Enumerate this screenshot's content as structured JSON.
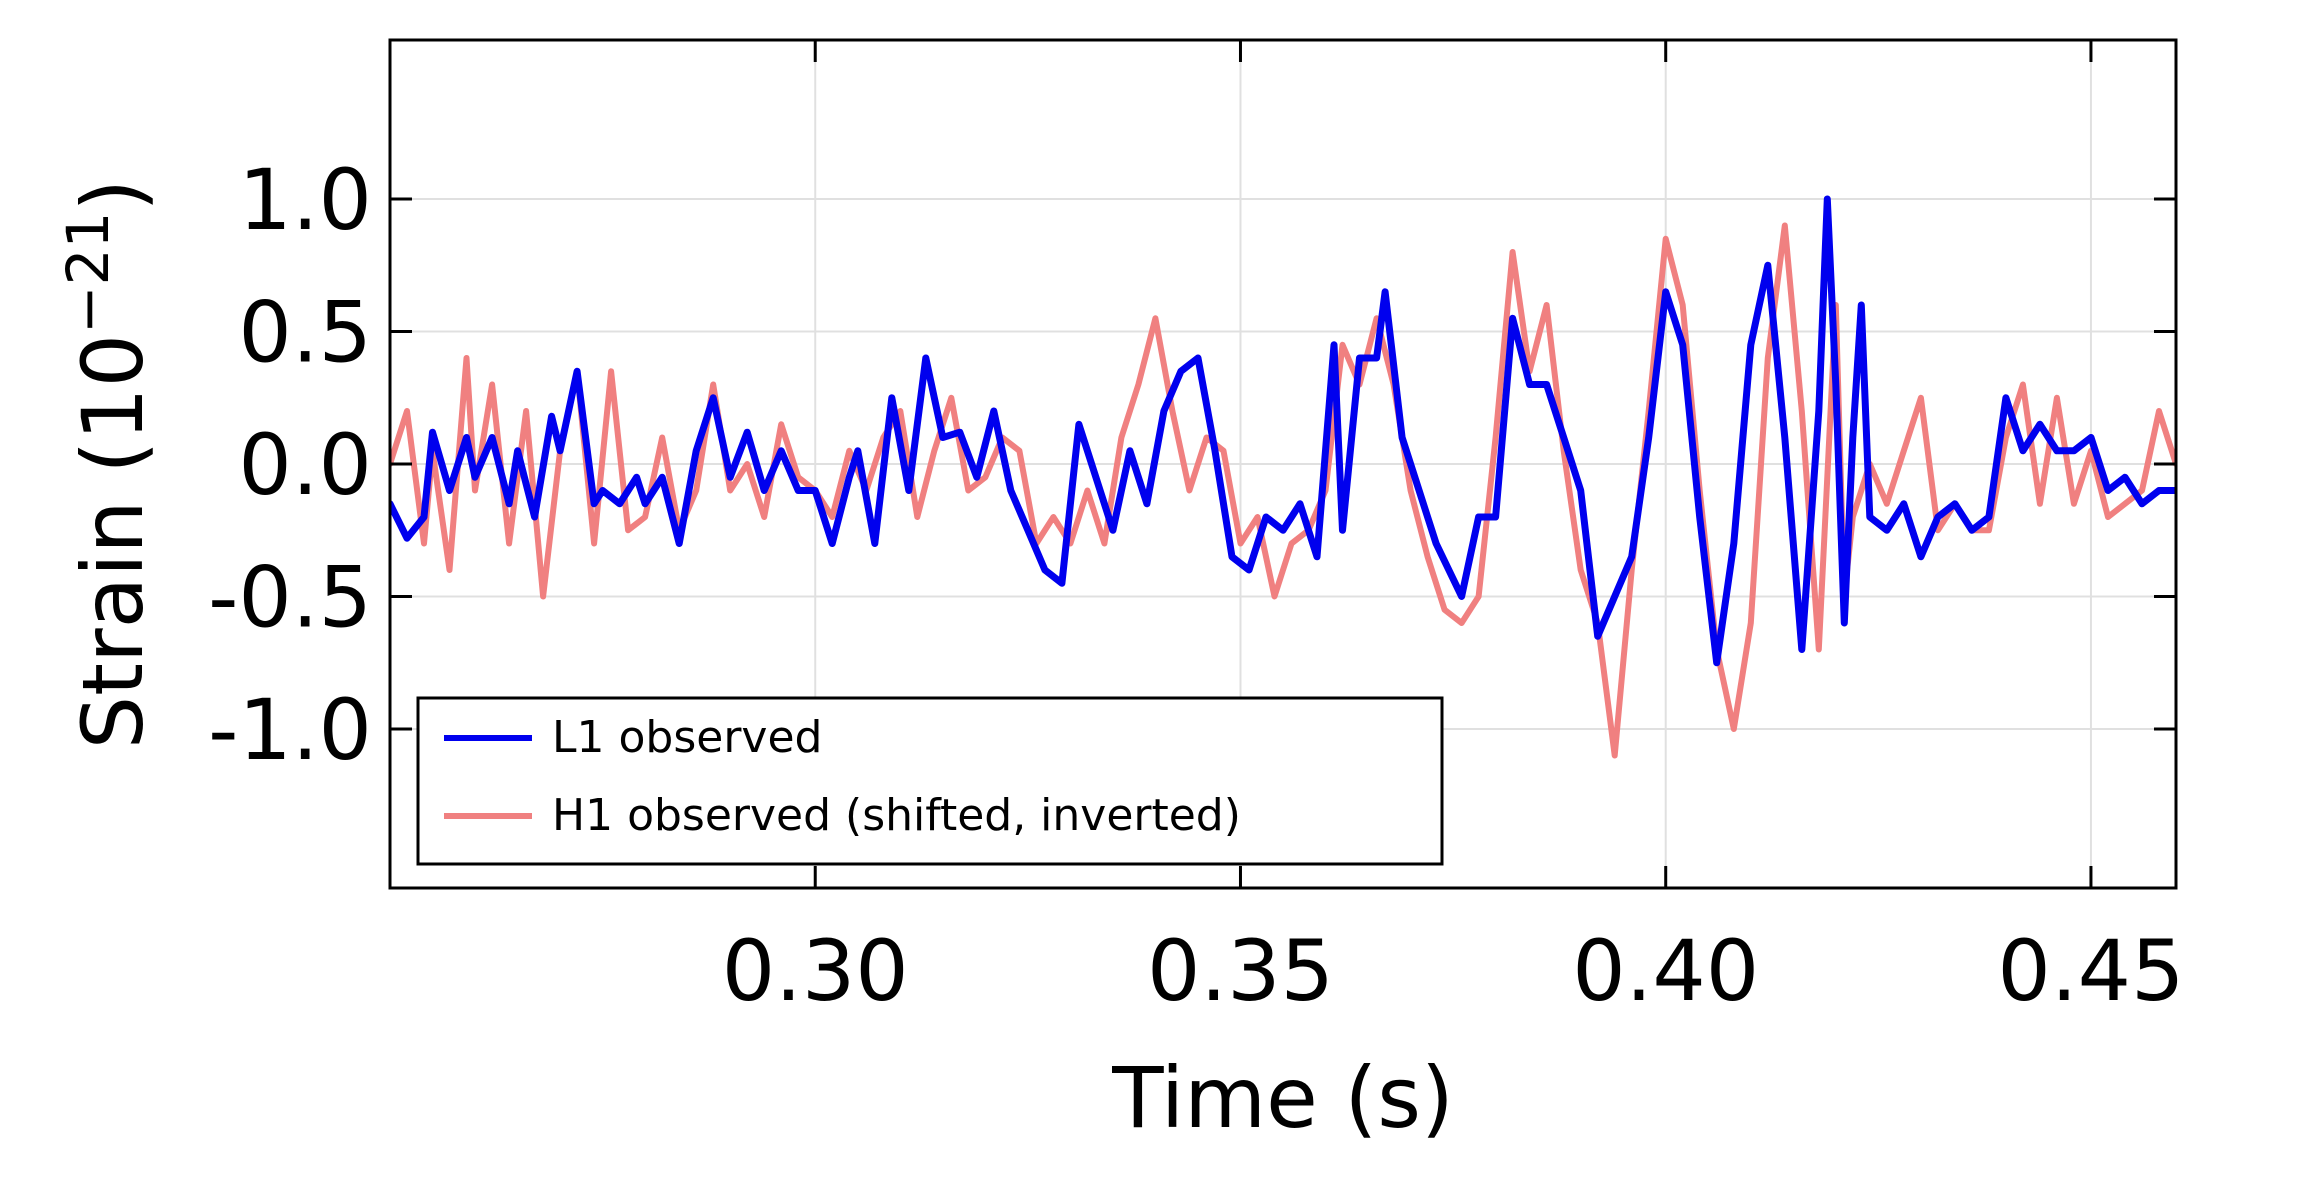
{
  "chart_data": {
    "type": "line",
    "title": "",
    "xlabel": "Time (s)",
    "ylabel": "Strain (10",
    "ylabel_exponent": "−21",
    "ylabel_close": ")",
    "xlim": [
      0.25,
      0.46
    ],
    "ylim": [
      -1.6,
      1.6
    ],
    "xticks": [
      0.3,
      0.35,
      0.4,
      0.45
    ],
    "xtick_labels": [
      "0.30",
      "0.35",
      "0.40",
      "0.45"
    ],
    "yticks": [
      1.0,
      0.5,
      0.0,
      -0.5,
      -1.0
    ],
    "ytick_labels": [
      "1.0",
      "0.5",
      "0.0",
      "-0.5",
      "-1.0"
    ],
    "grid": true,
    "legend_position": "bottom-left",
    "series": [
      {
        "name": "L1 observed",
        "color": "#0000ee",
        "x": [
          0.25,
          0.252,
          0.254,
          0.255,
          0.257,
          0.259,
          0.26,
          0.262,
          0.264,
          0.265,
          0.267,
          0.269,
          0.27,
          0.272,
          0.274,
          0.275,
          0.277,
          0.279,
          0.28,
          0.282,
          0.284,
          0.286,
          0.288,
          0.29,
          0.292,
          0.294,
          0.296,
          0.298,
          0.3,
          0.302,
          0.304,
          0.305,
          0.307,
          0.309,
          0.311,
          0.313,
          0.315,
          0.317,
          0.319,
          0.321,
          0.323,
          0.325,
          0.327,
          0.329,
          0.331,
          0.333,
          0.335,
          0.337,
          0.339,
          0.341,
          0.343,
          0.345,
          0.347,
          0.349,
          0.351,
          0.353,
          0.355,
          0.357,
          0.359,
          0.361,
          0.362,
          0.364,
          0.366,
          0.367,
          0.369,
          0.371,
          0.373,
          0.376,
          0.378,
          0.38,
          0.382,
          0.384,
          0.386,
          0.388,
          0.39,
          0.392,
          0.394,
          0.396,
          0.398,
          0.4,
          0.402,
          0.404,
          0.406,
          0.408,
          0.41,
          0.412,
          0.414,
          0.416,
          0.418,
          0.419,
          0.42,
          0.421,
          0.422,
          0.423,
          0.424,
          0.426,
          0.428,
          0.43,
          0.432,
          0.434,
          0.436,
          0.438,
          0.44,
          0.442,
          0.444,
          0.446,
          0.448,
          0.45,
          0.452,
          0.454,
          0.456,
          0.458,
          0.46
        ],
        "y": [
          -0.15,
          -0.28,
          -0.2,
          0.12,
          -0.1,
          0.1,
          -0.05,
          0.1,
          -0.15,
          0.05,
          -0.2,
          0.18,
          0.05,
          0.35,
          -0.15,
          -0.1,
          -0.15,
          -0.05,
          -0.15,
          -0.05,
          -0.3,
          0.05,
          0.25,
          -0.05,
          0.12,
          -0.1,
          0.05,
          -0.1,
          -0.1,
          -0.3,
          -0.05,
          0.05,
          -0.3,
          0.25,
          -0.1,
          0.4,
          0.1,
          0.12,
          -0.05,
          0.2,
          -0.1,
          -0.25,
          -0.4,
          -0.45,
          0.15,
          -0.05,
          -0.25,
          0.05,
          -0.15,
          0.2,
          0.35,
          0.4,
          0.05,
          -0.35,
          -0.4,
          -0.2,
          -0.25,
          -0.15,
          -0.35,
          0.45,
          -0.25,
          0.4,
          0.4,
          0.65,
          0.1,
          -0.1,
          -0.3,
          -0.5,
          -0.2,
          -0.2,
          0.55,
          0.3,
          0.3,
          0.1,
          -0.1,
          -0.65,
          -0.5,
          -0.35,
          0.1,
          0.65,
          0.45,
          -0.2,
          -0.75,
          -0.3,
          0.45,
          0.75,
          0.1,
          -0.7,
          0.2,
          1.0,
          0.3,
          -0.6,
          0.1,
          0.6,
          -0.2,
          -0.25,
          -0.15,
          -0.35,
          -0.2,
          -0.15,
          -0.25,
          -0.2,
          0.25,
          0.05,
          0.15,
          0.05,
          0.05,
          0.1,
          -0.1,
          -0.05,
          -0.15,
          -0.1,
          -0.1
        ]
      },
      {
        "name": "H1 observed (shifted, inverted)",
        "color": "#f08080",
        "x": [
          0.25,
          0.252,
          0.254,
          0.255,
          0.257,
          0.259,
          0.26,
          0.262,
          0.264,
          0.266,
          0.268,
          0.27,
          0.272,
          0.274,
          0.276,
          0.278,
          0.28,
          0.282,
          0.284,
          0.286,
          0.288,
          0.29,
          0.292,
          0.294,
          0.296,
          0.298,
          0.3,
          0.302,
          0.304,
          0.306,
          0.308,
          0.31,
          0.312,
          0.314,
          0.316,
          0.318,
          0.32,
          0.322,
          0.324,
          0.326,
          0.328,
          0.33,
          0.332,
          0.334,
          0.336,
          0.338,
          0.34,
          0.342,
          0.344,
          0.346,
          0.348,
          0.35,
          0.352,
          0.354,
          0.356,
          0.358,
          0.36,
          0.362,
          0.364,
          0.366,
          0.368,
          0.37,
          0.372,
          0.374,
          0.376,
          0.378,
          0.38,
          0.382,
          0.384,
          0.386,
          0.388,
          0.39,
          0.392,
          0.394,
          0.396,
          0.398,
          0.4,
          0.402,
          0.404,
          0.406,
          0.408,
          0.41,
          0.412,
          0.414,
          0.416,
          0.418,
          0.42,
          0.421,
          0.422,
          0.424,
          0.426,
          0.428,
          0.43,
          0.432,
          0.434,
          0.436,
          0.438,
          0.44,
          0.442,
          0.444,
          0.446,
          0.448,
          0.45,
          0.452,
          0.454,
          0.456,
          0.458,
          0.46
        ],
        "y": [
          0.0,
          0.2,
          -0.3,
          0.05,
          -0.4,
          0.4,
          -0.1,
          0.3,
          -0.3,
          0.2,
          -0.5,
          0.05,
          0.35,
          -0.3,
          0.35,
          -0.25,
          -0.2,
          0.1,
          -0.25,
          -0.1,
          0.3,
          -0.1,
          0.0,
          -0.2,
          0.15,
          -0.05,
          -0.1,
          -0.2,
          0.05,
          -0.1,
          0.1,
          0.2,
          -0.2,
          0.05,
          0.25,
          -0.1,
          -0.05,
          0.1,
          0.05,
          -0.3,
          -0.2,
          -0.3,
          -0.1,
          -0.3,
          0.1,
          0.3,
          0.55,
          0.2,
          -0.1,
          0.1,
          0.05,
          -0.3,
          -0.2,
          -0.5,
          -0.3,
          -0.25,
          -0.1,
          0.45,
          0.3,
          0.55,
          0.3,
          -0.1,
          -0.35,
          -0.55,
          -0.6,
          -0.5,
          0.1,
          0.8,
          0.35,
          0.6,
          0.05,
          -0.4,
          -0.6,
          -1.1,
          -0.4,
          0.2,
          0.85,
          0.6,
          -0.1,
          -0.7,
          -1.0,
          -0.6,
          0.4,
          0.9,
          0.2,
          -0.7,
          0.6,
          -0.5,
          -0.2,
          0.0,
          -0.15,
          0.05,
          0.25,
          -0.25,
          -0.15,
          -0.25,
          -0.25,
          0.1,
          0.3,
          -0.15,
          0.25,
          -0.15,
          0.05,
          -0.2,
          -0.15,
          -0.1,
          0.2,
          0.0
        ]
      }
    ]
  }
}
